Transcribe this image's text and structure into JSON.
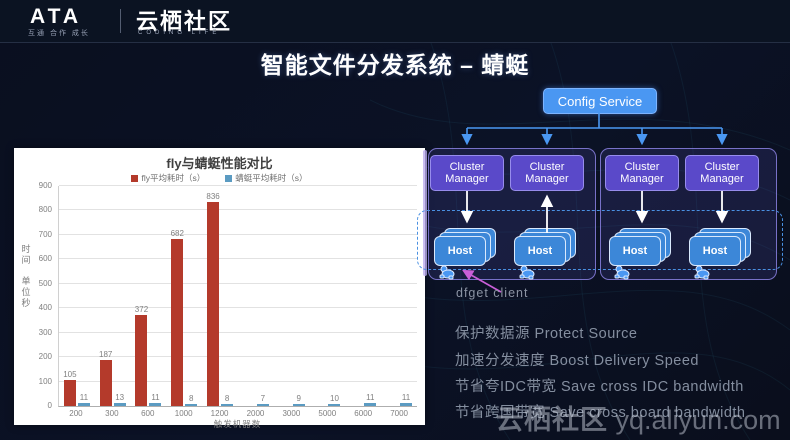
{
  "header": {
    "ata_logo": "ATA",
    "ata_tagline": "互通 合作 成长",
    "community_logo": "云栖社区",
    "community_tagline": "CODING LIFE"
  },
  "slide_title": "智能文件分发系统 – 蜻蜓",
  "chart_data": {
    "type": "bar",
    "title": "fly与蜻蜓性能对比",
    "categories": [
      "200",
      "300",
      "600",
      "1000",
      "1200",
      "2000",
      "3000",
      "5000",
      "6000",
      "7000"
    ],
    "series": [
      {
        "name": "fly平均耗时（s）",
        "color": "#b43a2b",
        "values": [
          105,
          187,
          372,
          682,
          836,
          0,
          0,
          0,
          0,
          0
        ]
      },
      {
        "name": "蜻蜓平均耗时（s）",
        "color": "#5b9bc2",
        "values": [
          11,
          13,
          11,
          8,
          8,
          7,
          9,
          10,
          11,
          11
        ]
      }
    ],
    "xlabel": "触发机器数",
    "ylabel": "时间 单位秒",
    "ylim": [
      0,
      900
    ],
    "ytick_step": 100,
    "grid": true,
    "legend_position": "top",
    "panel_background": "#ffffff"
  },
  "diagram": {
    "config_service_label": "Config Service",
    "cluster_manager_label": "Cluster Manager",
    "host_label": "Host",
    "dfget_client_label": "dfget client",
    "colors": {
      "config_blue": "#4a97f2",
      "manager_purple": "#5a49c9",
      "host_blue": "#3c87d8",
      "dashed_border_blue": "#4a90e2",
      "connector_blue": "#4a97f2",
      "arrow_white": "#ffffff",
      "dfget_arrow_magenta": "#c95fd8"
    }
  },
  "bullets": [
    "保护数据源 Protect Source",
    "加速分发速度 Boost Delivery Speed",
    "节省夸IDC带宽 Save cross IDC bandwidth",
    "节省跨国带宽 Save cross board bandwidth"
  ],
  "watermark": {
    "site_name": "云栖社区",
    "site_url": "yq.aliyun.com"
  }
}
